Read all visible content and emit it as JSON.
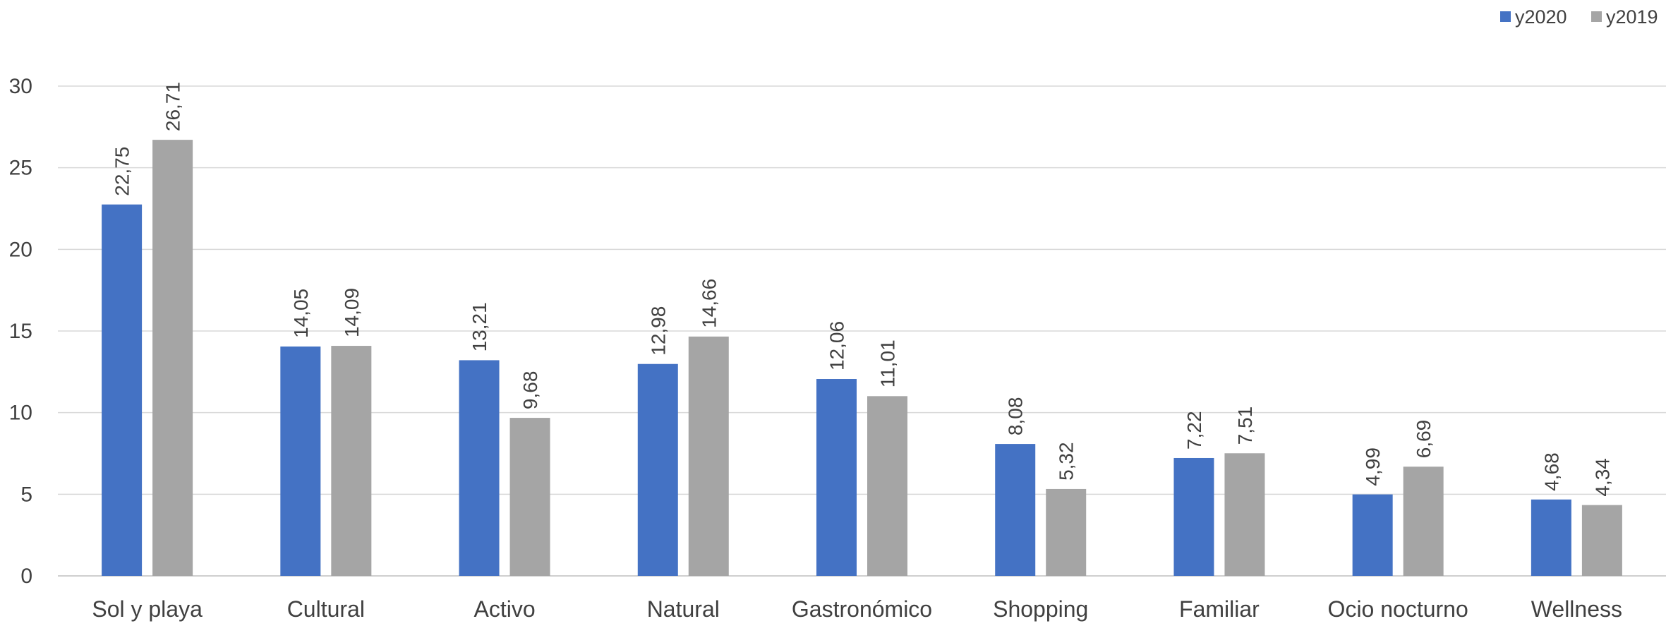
{
  "chart_data": {
    "type": "bar",
    "categories": [
      "Sol y playa",
      "Cultural",
      "Activo",
      "Natural",
      "Gastronómico",
      "Shopping",
      "Familiar",
      "Ocio nocturno",
      "Wellness"
    ],
    "series": [
      {
        "name": "y2020",
        "color": "#4472C4",
        "values": [
          22.75,
          14.05,
          13.21,
          12.98,
          12.06,
          8.08,
          7.22,
          4.99,
          4.68
        ],
        "labels": [
          "22,75",
          "14,05",
          "13,21",
          "12,98",
          "12,06",
          "8,08",
          "7,22",
          "4,99",
          "4,68"
        ]
      },
      {
        "name": "y2019",
        "color": "#A5A5A5",
        "values": [
          26.71,
          14.09,
          9.68,
          14.66,
          11.01,
          5.32,
          7.51,
          6.69,
          4.34
        ],
        "labels": [
          "26,71",
          "14,09",
          "9,68",
          "14,66",
          "11,01",
          "5,32",
          "7,51",
          "6,69",
          "4,34"
        ]
      }
    ],
    "yticks": [
      "0",
      "5",
      "10",
      "15",
      "20",
      "25",
      "30"
    ],
    "ylim": [
      0,
      30
    ],
    "title": "",
    "xlabel": "",
    "ylabel": "",
    "grid": true,
    "legend_position": "top-right"
  }
}
